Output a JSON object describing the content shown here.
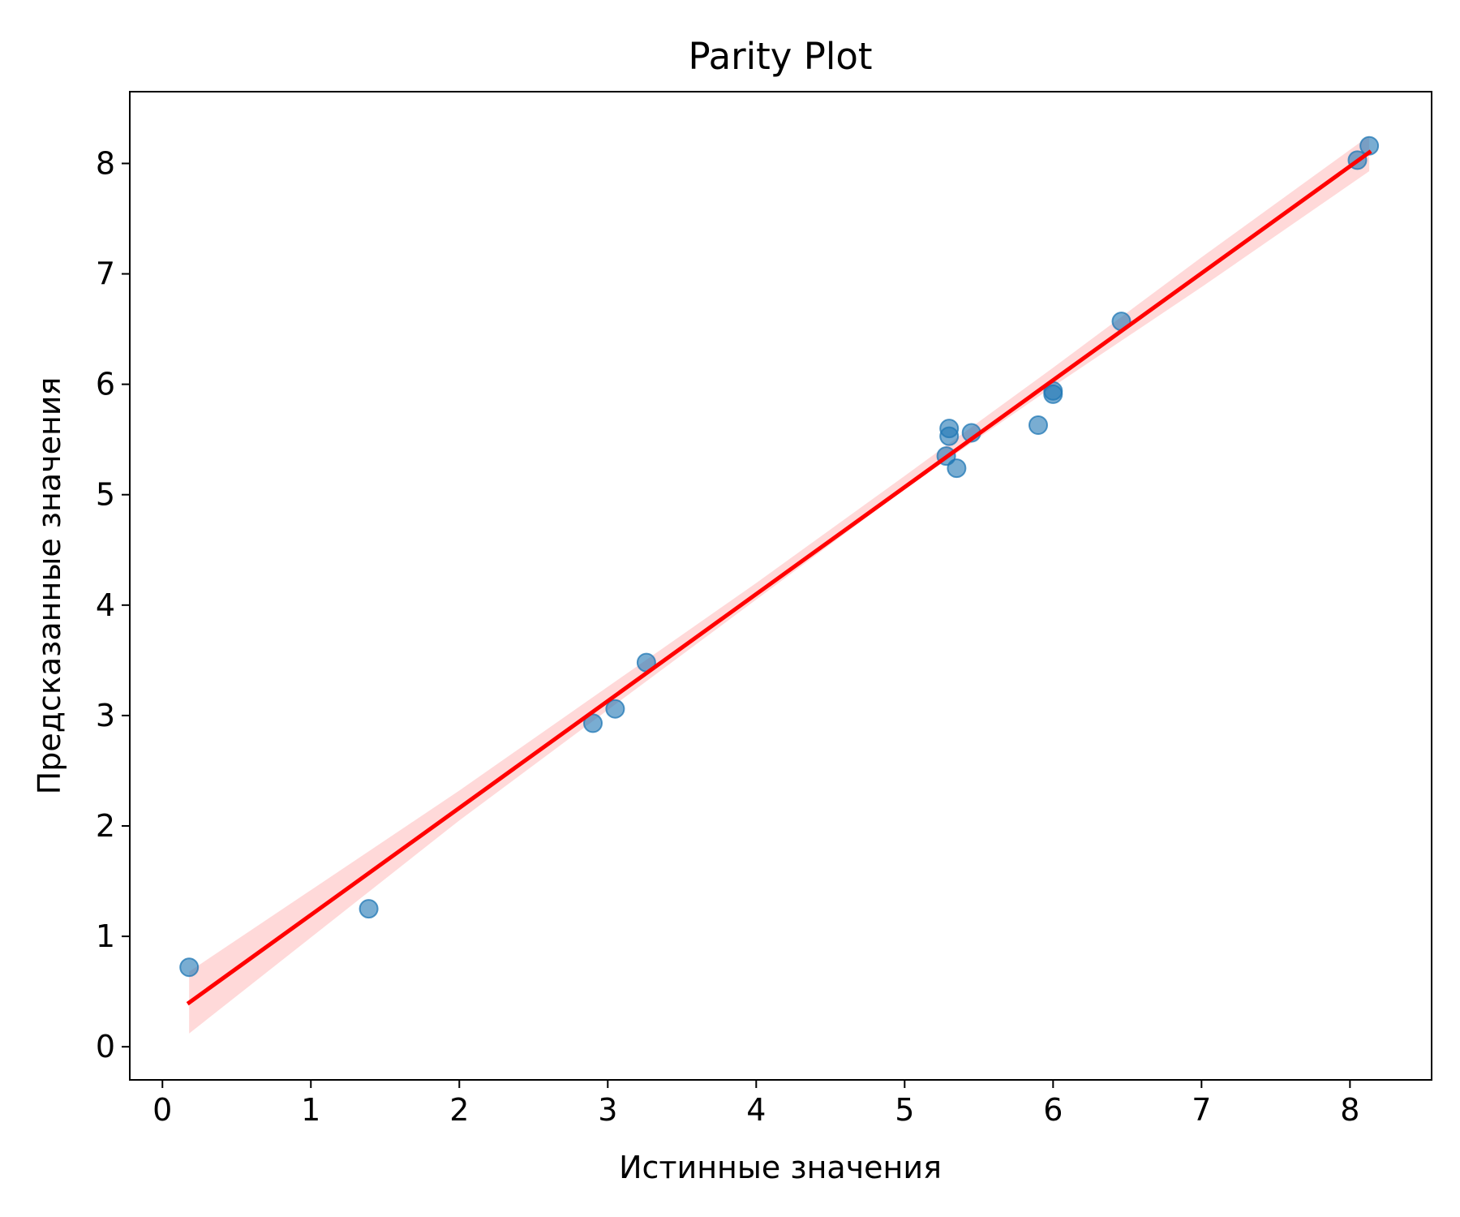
{
  "chart_data": {
    "type": "scatter",
    "title": "Parity Plot",
    "xlabel": "Истинные значения",
    "ylabel": "Предсказанные значения",
    "xlim": [
      -0.22,
      8.55
    ],
    "ylim": [
      -0.3,
      8.65
    ],
    "xticks": [
      0,
      1,
      2,
      3,
      4,
      5,
      6,
      7,
      8
    ],
    "yticks": [
      0,
      1,
      2,
      3,
      4,
      5,
      6,
      7,
      8
    ],
    "grid": false,
    "colors": {
      "points": "#1f77b4",
      "fit_line": "#ff0000",
      "confidence_band": "#ffcccc"
    },
    "points": [
      {
        "x": 0.18,
        "y": 0.72
      },
      {
        "x": 1.39,
        "y": 1.25
      },
      {
        "x": 2.9,
        "y": 2.93
      },
      {
        "x": 3.05,
        "y": 3.06
      },
      {
        "x": 3.26,
        "y": 3.48
      },
      {
        "x": 5.28,
        "y": 5.35
      },
      {
        "x": 5.3,
        "y": 5.6
      },
      {
        "x": 5.3,
        "y": 5.53
      },
      {
        "x": 5.35,
        "y": 5.24
      },
      {
        "x": 5.45,
        "y": 5.56
      },
      {
        "x": 5.9,
        "y": 5.63
      },
      {
        "x": 6.0,
        "y": 5.91
      },
      {
        "x": 6.0,
        "y": 5.94
      },
      {
        "x": 6.46,
        "y": 6.57
      },
      {
        "x": 8.05,
        "y": 8.03
      },
      {
        "x": 8.13,
        "y": 8.16
      }
    ],
    "fit_line": {
      "x": [
        0.18,
        8.13
      ],
      "y": [
        0.4,
        8.1
      ]
    },
    "confidence_band": [
      {
        "x": 0.18,
        "lower": 0.12,
        "upper": 0.68
      },
      {
        "x": 2.0,
        "lower": 2.05,
        "upper": 2.32
      },
      {
        "x": 4.0,
        "lower": 4.05,
        "upper": 4.2
      },
      {
        "x": 5.0,
        "lower": 5.05,
        "upper": 5.17
      },
      {
        "x": 6.0,
        "lower": 5.98,
        "upper": 6.15
      },
      {
        "x": 7.0,
        "lower": 6.88,
        "upper": 7.15
      },
      {
        "x": 8.13,
        "lower": 7.93,
        "upper": 8.25
      }
    ]
  }
}
